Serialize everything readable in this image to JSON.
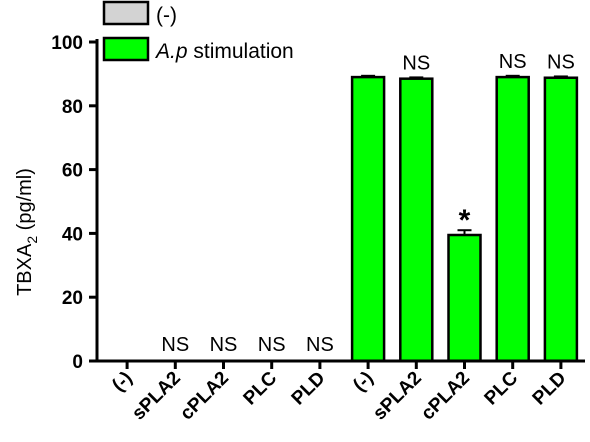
{
  "chart_data": {
    "type": "bar",
    "categories": [
      "(-)",
      "sPLA2",
      "cPLA2",
      "PLC",
      "PLD",
      "(-)",
      "sPLA2",
      "cPLA2",
      "PLC",
      "PLD"
    ],
    "values": [
      0,
      0,
      0,
      0,
      0,
      89,
      88.5,
      39.5,
      89,
      88.8
    ],
    "errors": [
      0,
      0,
      0,
      0,
      0,
      0.4,
      0.4,
      1.5,
      0.4,
      0.4
    ],
    "groups": [
      "(-)",
      "(-)",
      "(-)",
      "(-)",
      "(-)",
      "A.p stimulation",
      "A.p stimulation",
      "A.p stimulation",
      "A.p stimulation",
      "A.p stimulation"
    ],
    "annotations": [
      "",
      "NS",
      "NS",
      "NS",
      "NS",
      "",
      "NS",
      "*",
      "NS",
      "NS"
    ],
    "legend": [
      {
        "label_prefix": "(-)",
        "label_italic": "",
        "label_suffix": "",
        "color": "#d3d3d3"
      },
      {
        "label_prefix": "",
        "label_italic": "A.p",
        "label_suffix": " stimulation",
        "color": "#00ff00"
      }
    ],
    "ylabel_main": "TBXA",
    "ylabel_sub": "2",
    "ylabel_unit": " (pg/ml)",
    "ylim": [
      0,
      100
    ],
    "yticks": [
      0,
      20,
      40,
      60,
      80,
      100
    ],
    "legend_position": "top-left",
    "grid": false
  }
}
